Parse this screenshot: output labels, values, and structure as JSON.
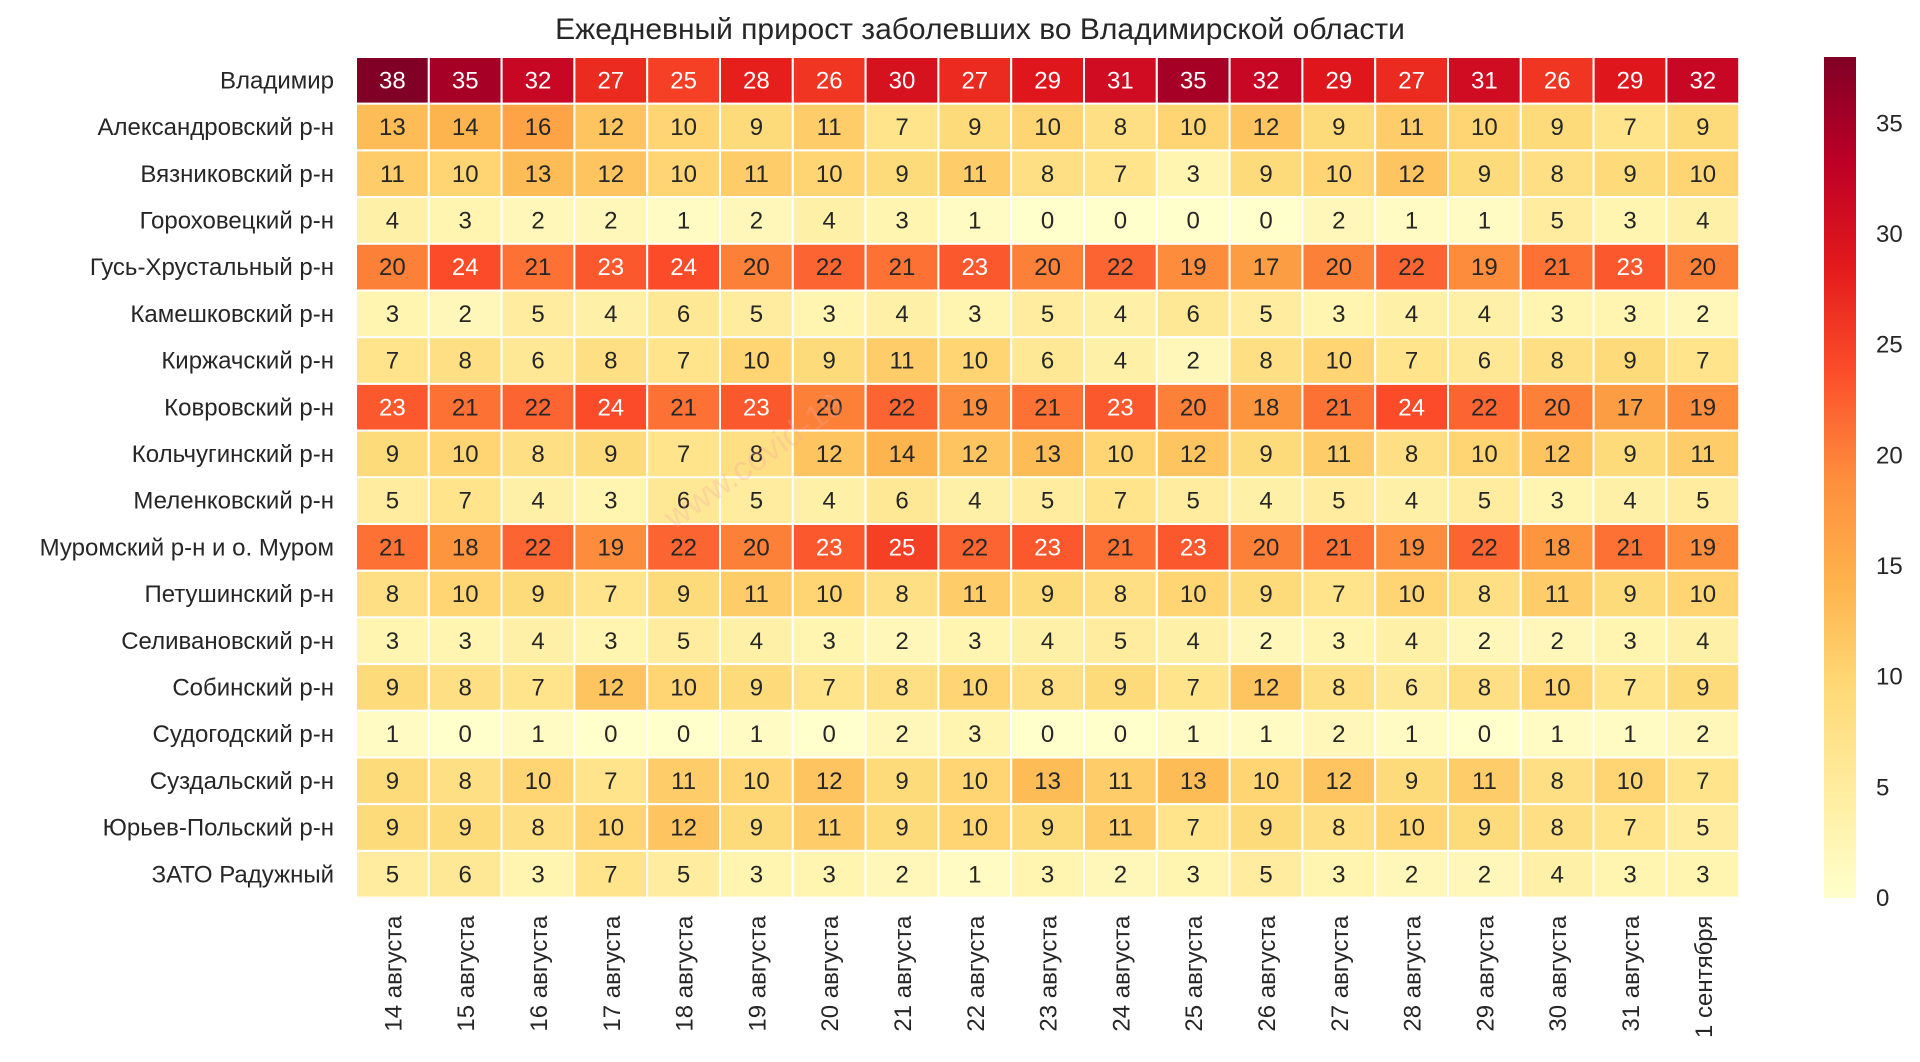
{
  "chart_data": {
    "type": "heatmap",
    "title": "Ежедневный прирост заболевших во Владимирской области",
    "xlabel": "",
    "ylabel": "",
    "rows": [
      "Владимир",
      "Александровский р-н",
      "Вязниковский р-н",
      "Гороховецкий р-н",
      "Гусь-Хрустальный р-н",
      "Камешковский р-н",
      "Киржачский р-н",
      "Ковровский р-н",
      "Кольчугинский р-н",
      "Меленковский р-н",
      "Муромский р-н и о. Муром",
      "Петушинский р-н",
      "Селивановский р-н",
      "Собинский р-н",
      "Судогодский р-н",
      "Суздальский р-н",
      "Юрьев-Польский р-н",
      "ЗАТО Радужный"
    ],
    "columns": [
      "14 августа",
      "15 августа",
      "16 августа",
      "17 августа",
      "18 августа",
      "19 августа",
      "20 августа",
      "21 августа",
      "22 августа",
      "23 августа",
      "24 августа",
      "25 августа",
      "26 августа",
      "27 августа",
      "28 августа",
      "29 августа",
      "30 августа",
      "31 августа",
      "1 сентября"
    ],
    "values": [
      [
        38,
        35,
        32,
        27,
        25,
        28,
        26,
        30,
        27,
        29,
        31,
        35,
        32,
        29,
        27,
        31,
        26,
        29,
        32
      ],
      [
        13,
        14,
        16,
        12,
        10,
        9,
        11,
        7,
        9,
        10,
        8,
        10,
        12,
        9,
        11,
        10,
        9,
        7,
        9
      ],
      [
        11,
        10,
        13,
        12,
        10,
        11,
        10,
        9,
        11,
        8,
        7,
        3,
        9,
        10,
        12,
        9,
        8,
        9,
        10
      ],
      [
        4,
        3,
        2,
        2,
        1,
        2,
        4,
        3,
        1,
        0,
        0,
        0,
        0,
        2,
        1,
        1,
        5,
        3,
        4
      ],
      [
        20,
        24,
        21,
        23,
        24,
        20,
        22,
        21,
        23,
        20,
        22,
        19,
        17,
        20,
        22,
        19,
        21,
        23,
        20
      ],
      [
        3,
        2,
        5,
        4,
        6,
        5,
        3,
        4,
        3,
        5,
        4,
        6,
        5,
        3,
        4,
        4,
        3,
        3,
        2
      ],
      [
        7,
        8,
        6,
        8,
        7,
        10,
        9,
        11,
        10,
        6,
        4,
        2,
        8,
        10,
        7,
        6,
        8,
        9,
        7
      ],
      [
        23,
        21,
        22,
        24,
        21,
        23,
        20,
        22,
        19,
        21,
        23,
        20,
        18,
        21,
        24,
        22,
        20,
        17,
        19
      ],
      [
        9,
        10,
        8,
        9,
        7,
        8,
        12,
        14,
        12,
        13,
        10,
        12,
        9,
        11,
        8,
        10,
        12,
        9,
        11
      ],
      [
        5,
        7,
        4,
        3,
        6,
        5,
        4,
        6,
        4,
        5,
        7,
        5,
        4,
        5,
        4,
        5,
        3,
        4,
        5
      ],
      [
        21,
        18,
        22,
        19,
        22,
        20,
        23,
        25,
        22,
        23,
        21,
        23,
        20,
        21,
        19,
        22,
        18,
        21,
        19
      ],
      [
        8,
        10,
        9,
        7,
        9,
        11,
        10,
        8,
        11,
        9,
        8,
        10,
        9,
        7,
        10,
        8,
        11,
        9,
        10
      ],
      [
        3,
        3,
        4,
        3,
        5,
        4,
        3,
        2,
        3,
        4,
        5,
        4,
        2,
        3,
        4,
        2,
        2,
        3,
        4
      ],
      [
        9,
        8,
        7,
        12,
        10,
        9,
        7,
        8,
        10,
        8,
        9,
        7,
        12,
        8,
        6,
        8,
        10,
        7,
        9
      ],
      [
        1,
        0,
        1,
        0,
        0,
        1,
        0,
        2,
        3,
        0,
        0,
        1,
        1,
        2,
        1,
        0,
        1,
        1,
        2
      ],
      [
        9,
        8,
        10,
        7,
        11,
        10,
        12,
        9,
        10,
        13,
        11,
        13,
        10,
        12,
        9,
        11,
        8,
        10,
        7
      ],
      [
        9,
        9,
        8,
        10,
        12,
        9,
        11,
        9,
        10,
        9,
        11,
        7,
        9,
        8,
        10,
        9,
        8,
        7,
        5
      ],
      [
        5,
        6,
        3,
        7,
        5,
        3,
        3,
        2,
        1,
        3,
        2,
        3,
        5,
        3,
        2,
        2,
        4,
        3,
        3
      ]
    ],
    "colormap": "YlOrRd",
    "colorbar": {
      "min": 0,
      "max": 38,
      "ticks": [
        0,
        5,
        10,
        15,
        20,
        25,
        30,
        35
      ]
    },
    "grid": false,
    "legend": "colorbar-right"
  }
}
